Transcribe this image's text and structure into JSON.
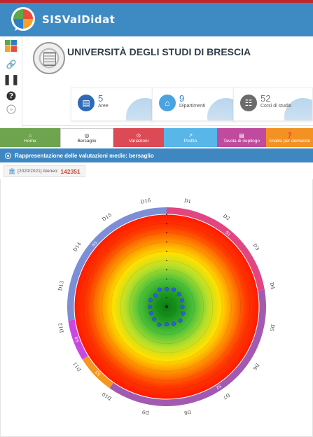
{
  "app": {
    "title": "SISValDidat"
  },
  "university": {
    "name": "UNIVERSITÀ DEGLI STUDI DI BRESCIA"
  },
  "stats": [
    {
      "number": "5",
      "label": "Aree",
      "color": "#2d6bb8"
    },
    {
      "number": "9",
      "label": "Dipartimenti",
      "color": "#4aa3df"
    },
    {
      "number": "52",
      "label": "Corsi di studio",
      "color": "#6b6b6b"
    }
  ],
  "tabs": [
    {
      "label": "Home",
      "color": "#6fa44e",
      "icon": "building-icon"
    },
    {
      "label": "Bersaglio",
      "color": "#ffffff",
      "icon": "target-icon",
      "active": true
    },
    {
      "label": "Variazioni",
      "color": "#dc4b55",
      "icon": "variation-icon"
    },
    {
      "label": "Profilo",
      "color": "#58b6e8",
      "icon": "chart-icon"
    },
    {
      "label": "Tavola di riepilogo",
      "color": "#c04a9e",
      "icon": "table-icon"
    },
    {
      "label": "Analisi per domande",
      "color": "#f39222",
      "icon": "question-icon"
    }
  ],
  "section": {
    "title": "Rappresentazione delle valutazioni medie: bersaglio"
  },
  "filter": {
    "label": "[2020/2021] Ateneo:",
    "value": "142351"
  },
  "chart_data": {
    "type": "scatter",
    "subtype": "radial-target",
    "labels": [
      "D1",
      "D2",
      "D3",
      "D4",
      "D5",
      "D6",
      "D7",
      "D8",
      "D9",
      "D10",
      "D11",
      "D12",
      "D13",
      "D14",
      "D15",
      "D16"
    ],
    "group_labels": [
      "S1",
      "S2",
      "S3",
      "S4",
      "S5"
    ],
    "points": [
      {
        "angle": 0,
        "r": 0.19
      },
      {
        "angle": 22.5,
        "r": 0.2
      },
      {
        "angle": 45,
        "r": 0.19
      },
      {
        "angle": 67.5,
        "r": 0.18
      },
      {
        "angle": 90,
        "r": 0.17
      },
      {
        "angle": 112.5,
        "r": 0.19
      },
      {
        "angle": 135,
        "r": 0.21
      },
      {
        "angle": 157.5,
        "r": 0.2
      },
      {
        "angle": 180,
        "r": 0.19
      },
      {
        "angle": 202.5,
        "r": 0.21
      },
      {
        "angle": 225,
        "r": 0.19
      },
      {
        "angle": 247.5,
        "r": 0.18
      },
      {
        "angle": 270,
        "r": 0.18
      },
      {
        "angle": 292.5,
        "r": 0.19
      },
      {
        "angle": 315,
        "r": 0.17
      },
      {
        "angle": 337.5,
        "r": 0.2
      }
    ],
    "colors": {
      "ring_blue": "#7c8fd6",
      "ring_pink": "#e24680",
      "ring_purple": "#a25ab0",
      "ring_magenta": "#cc47e1",
      "ring_orange": "#f5971f",
      "point": "#2f5fdc"
    }
  }
}
